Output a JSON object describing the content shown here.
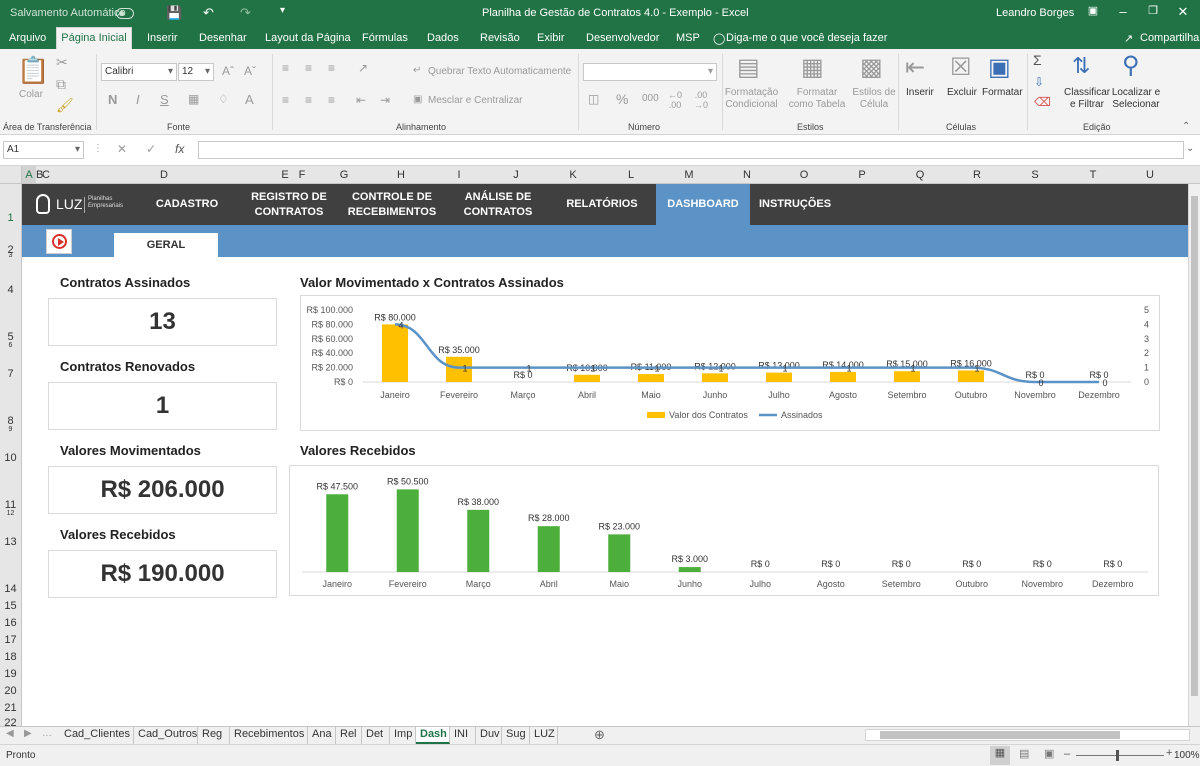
{
  "titlebar": {
    "autosave": "Salvamento Automático",
    "title": "Planilha de Gestão de Contratos 4.0 - Exemplo  -  Excel",
    "user": "Leandro Borges"
  },
  "menu": {
    "items": [
      "Arquivo",
      "Página Inicial",
      "Inserir",
      "Desenhar",
      "Layout da Página",
      "Fórmulas",
      "Dados",
      "Revisão",
      "Exibir",
      "Desenvolvedor",
      "MSP"
    ],
    "tellme": "Diga-me o que você deseja fazer",
    "share": "Compartilhar"
  },
  "ribbon": {
    "clipboard": {
      "paste": "Colar",
      "label": "Área de Transferência"
    },
    "font": {
      "name": "Calibri",
      "size": "12",
      "bold": "N",
      "italic": "I",
      "underline": "S",
      "label": "Fonte"
    },
    "alignment": {
      "wrap": "Quebrar Texto Automaticamente",
      "merge": "Mesclar e Centralizar",
      "label": "Alinhamento"
    },
    "number": {
      "label": "Número"
    },
    "styles": {
      "cond": "Formatação Condicional",
      "table": "Formatar como Tabela",
      "cell": "Estilos de Célula",
      "label": "Estilos"
    },
    "cells": {
      "insert": "Inserir",
      "delete": "Excluir",
      "format": "Formatar",
      "label": "Células"
    },
    "editing": {
      "sort": "Classificar e Filtrar",
      "find": "Localizar e Selecionar",
      "label": "Edição"
    }
  },
  "formulabar": {
    "namebox": "A1",
    "fx": "fx"
  },
  "columns": [
    "A",
    "B",
    "C",
    "D",
    "E",
    "F",
    "G",
    "H",
    "I",
    "J",
    "K",
    "L",
    "M",
    "N",
    "O",
    "P",
    "Q",
    "R",
    "S",
    "T",
    "U"
  ],
  "rows": [
    "1",
    "2",
    "3",
    "4",
    "5",
    "6",
    "7",
    "8",
    "9",
    "10",
    "11",
    "12",
    "13",
    "14",
    "15",
    "16",
    "17",
    "18",
    "19",
    "20",
    "21",
    "22"
  ],
  "nav": {
    "logo": "LUZ",
    "logo_sub1": "Planilhas",
    "logo_sub2": "Empresariais",
    "items": [
      "CADASTRO",
      "REGISTRO DE CONTRATOS",
      "CONTROLE DE RECEBIMENTOS",
      "ANÁLISE DE CONTRATOS",
      "RELATÓRIOS",
      "DASHBOARD",
      "INSTRUÇÕES"
    ],
    "subtab": "GERAL"
  },
  "kpis": [
    {
      "title": "Contratos Assinados",
      "value": "13"
    },
    {
      "title": "Contratos Renovados",
      "value": "1"
    },
    {
      "title": "Valores Movimentados",
      "value": "R$ 206.000"
    },
    {
      "title": "Valores Recebidos",
      "value": "R$ 190.000"
    }
  ],
  "chart_data": [
    {
      "type": "bar",
      "title": "Valor Movimentado x Contratos Assinados",
      "categories": [
        "Janeiro",
        "Fevereiro",
        "Março",
        "Abril",
        "Maio",
        "Junho",
        "Julho",
        "Agosto",
        "Setembro",
        "Outubro",
        "Novembro",
        "Dezembro"
      ],
      "series": [
        {
          "name": "Valor dos Contratos",
          "type": "bar",
          "values": [
            80000,
            35000,
            0,
            10000,
            11000,
            12000,
            13000,
            14000,
            15000,
            16000,
            0,
            0
          ],
          "labels": [
            "R$ 80.000",
            "R$ 35.000",
            "R$ 0",
            "R$ 10.000",
            "R$ 11.000",
            "R$ 12.000",
            "R$ 13.000",
            "R$ 14.000",
            "R$ 15.000",
            "R$ 16.000",
            "R$ 0",
            "R$ 0"
          ],
          "color": "#ffc000"
        },
        {
          "name": "Assinados",
          "type": "line",
          "values": [
            4,
            1,
            1,
            1,
            1,
            1,
            1,
            1,
            1,
            1,
            0,
            0
          ],
          "color": "#5b93c7"
        }
      ],
      "y_ticks": [
        "R$ 100.000",
        "R$ 80.000",
        "R$ 60.000",
        "R$ 40.000",
        "R$ 20.000",
        "R$ 0"
      ],
      "ylim": [
        0,
        100000
      ],
      "y2_ticks": [
        "5",
        "4",
        "3",
        "2",
        "1",
        "0"
      ],
      "y2lim": [
        0,
        5
      ],
      "legend": "bottom"
    },
    {
      "type": "bar",
      "title": "Valores Recebidos",
      "categories": [
        "Janeiro",
        "Fevereiro",
        "Março",
        "Abril",
        "Maio",
        "Junho",
        "Julho",
        "Agosto",
        "Setembro",
        "Outubro",
        "Novembro",
        "Dezembro"
      ],
      "series": [
        {
          "type": "bar",
          "values": [
            47500,
            50500,
            38000,
            28000,
            23000,
            3000,
            0,
            0,
            0,
            0,
            0,
            0
          ],
          "labels": [
            "R$ 47.500",
            "R$ 50.500",
            "R$ 38.000",
            "R$ 28.000",
            "R$ 23.000",
            "R$ 3.000",
            "R$ 0",
            "R$ 0",
            "R$ 0",
            "R$ 0",
            "R$ 0",
            "R$ 0"
          ],
          "color": "#4caf3b"
        }
      ],
      "ylim": [
        0,
        55000
      ]
    }
  ],
  "sheets": [
    "Cad_Clientes",
    "Cad_Outros",
    "Reg",
    "Recebimentos",
    "Ana",
    "Rel",
    "Det",
    "Imp",
    "Dash",
    "INI",
    "Duv",
    "Sug",
    "LUZ"
  ],
  "active_sheet": "Dash",
  "status": {
    "ready": "Pronto",
    "zoom": "100%"
  },
  "colors": {
    "excel_green": "#217346",
    "nav_dark": "#404040",
    "accent_blue": "#5b93c7",
    "bar_yellow": "#ffc000",
    "bar_green": "#4caf3b"
  }
}
